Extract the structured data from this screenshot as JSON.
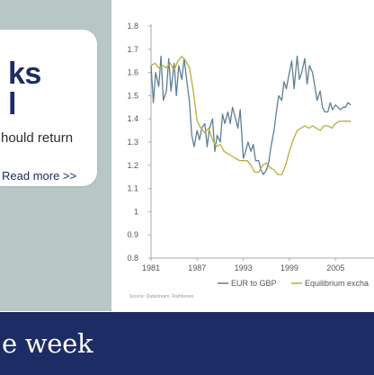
{
  "promo": {
    "title_lines": "ks\nl",
    "text": "hould return",
    "link_label": "Read more >>"
  },
  "banner": {
    "text": "e week"
  },
  "chart_data": {
    "type": "line",
    "title": "",
    "xlabel": "",
    "ylabel": "",
    "ylim": [
      0.8,
      1.8
    ],
    "yticks": [
      "0.8",
      "0.9",
      "1",
      "1.1",
      "1.2",
      "1.3",
      "1.4",
      "1.5",
      "1.6",
      "1.7",
      "1.8"
    ],
    "xlim": [
      1981,
      2010
    ],
    "xticks": [
      "1981",
      "1987",
      "1993",
      "1999",
      "2005"
    ],
    "grid": false,
    "legend_position": "bottom",
    "source": "Source: Datastream, Rathbones",
    "colors": {
      "eur_gbp": "#5e7f93",
      "equilibrium": "#b7ad3a",
      "axis": "#a8a8a8",
      "text": "#555555"
    },
    "series": [
      {
        "name": "EUR to GBP",
        "x": [
          1981,
          1981.3,
          1981.6,
          1982,
          1982.3,
          1982.6,
          1983,
          1983.3,
          1983.6,
          1984,
          1984.3,
          1984.6,
          1985,
          1985.3,
          1985.6,
          1986,
          1986.3,
          1986.6,
          1987,
          1987.3,
          1987.6,
          1988,
          1988.3,
          1988.6,
          1989,
          1989.3,
          1989.6,
          1990,
          1990.3,
          1990.6,
          1991,
          1991.3,
          1991.6,
          1992,
          1992.3,
          1992.6,
          1993,
          1993.3,
          1993.6,
          1994,
          1994.3,
          1994.6,
          1995,
          1995.3,
          1995.6,
          1996,
          1996.3,
          1996.6,
          1997,
          1997.3,
          1997.6,
          1998,
          1998.3,
          1998.6,
          1999,
          1999.3,
          1999.6,
          2000,
          2000.3,
          2000.6,
          2001,
          2001.3,
          2001.6,
          2002,
          2002.3,
          2002.6,
          2003,
          2003.3,
          2003.6,
          2004,
          2004.3,
          2004.6,
          2005,
          2005.3,
          2005.6,
          2006,
          2006.3,
          2006.6,
          2007
        ],
        "values": [
          1.63,
          1.47,
          1.6,
          1.54,
          1.67,
          1.48,
          1.52,
          1.66,
          1.52,
          1.64,
          1.5,
          1.63,
          1.57,
          1.66,
          1.58,
          1.47,
          1.33,
          1.28,
          1.35,
          1.31,
          1.36,
          1.38,
          1.28,
          1.36,
          1.4,
          1.26,
          1.33,
          1.3,
          1.42,
          1.38,
          1.43,
          1.38,
          1.45,
          1.4,
          1.36,
          1.44,
          1.23,
          1.26,
          1.3,
          1.26,
          1.29,
          1.22,
          1.22,
          1.18,
          1.16,
          1.18,
          1.21,
          1.28,
          1.35,
          1.43,
          1.5,
          1.48,
          1.56,
          1.53,
          1.6,
          1.65,
          1.53,
          1.67,
          1.57,
          1.6,
          1.66,
          1.55,
          1.63,
          1.6,
          1.54,
          1.48,
          1.52,
          1.45,
          1.43,
          1.43,
          1.47,
          1.44,
          1.46,
          1.45,
          1.44,
          1.45,
          1.45,
          1.47,
          1.46
        ]
      },
      {
        "name": "Equilibrium excha",
        "x": [
          1981,
          1981.5,
          1982,
          1982.5,
          1983,
          1983.5,
          1984,
          1984.5,
          1985,
          1985.5,
          1986,
          1986.5,
          1987,
          1987.5,
          1988,
          1988.5,
          1989,
          1989.5,
          1990,
          1990.5,
          1991,
          1991.5,
          1992,
          1992.5,
          1993,
          1993.5,
          1994,
          1994.5,
          1995,
          1995.5,
          1996,
          1996.5,
          1997,
          1997.5,
          1998,
          1998.5,
          1999,
          1999.5,
          2000,
          2000.5,
          2001,
          2001.5,
          2002,
          2002.5,
          2003,
          2003.5,
          2004,
          2004.5,
          2005,
          2005.5,
          2006,
          2006.5,
          2007
        ],
        "values": [
          1.63,
          1.64,
          1.62,
          1.63,
          1.62,
          1.64,
          1.61,
          1.65,
          1.67,
          1.65,
          1.62,
          1.52,
          1.39,
          1.36,
          1.34,
          1.36,
          1.31,
          1.28,
          1.29,
          1.26,
          1.25,
          1.24,
          1.23,
          1.22,
          1.22,
          1.22,
          1.2,
          1.17,
          1.17,
          1.2,
          1.21,
          1.19,
          1.18,
          1.16,
          1.16,
          1.2,
          1.26,
          1.31,
          1.35,
          1.36,
          1.37,
          1.36,
          1.37,
          1.36,
          1.35,
          1.37,
          1.37,
          1.36,
          1.38,
          1.39,
          1.39,
          1.39,
          1.39
        ]
      }
    ]
  }
}
